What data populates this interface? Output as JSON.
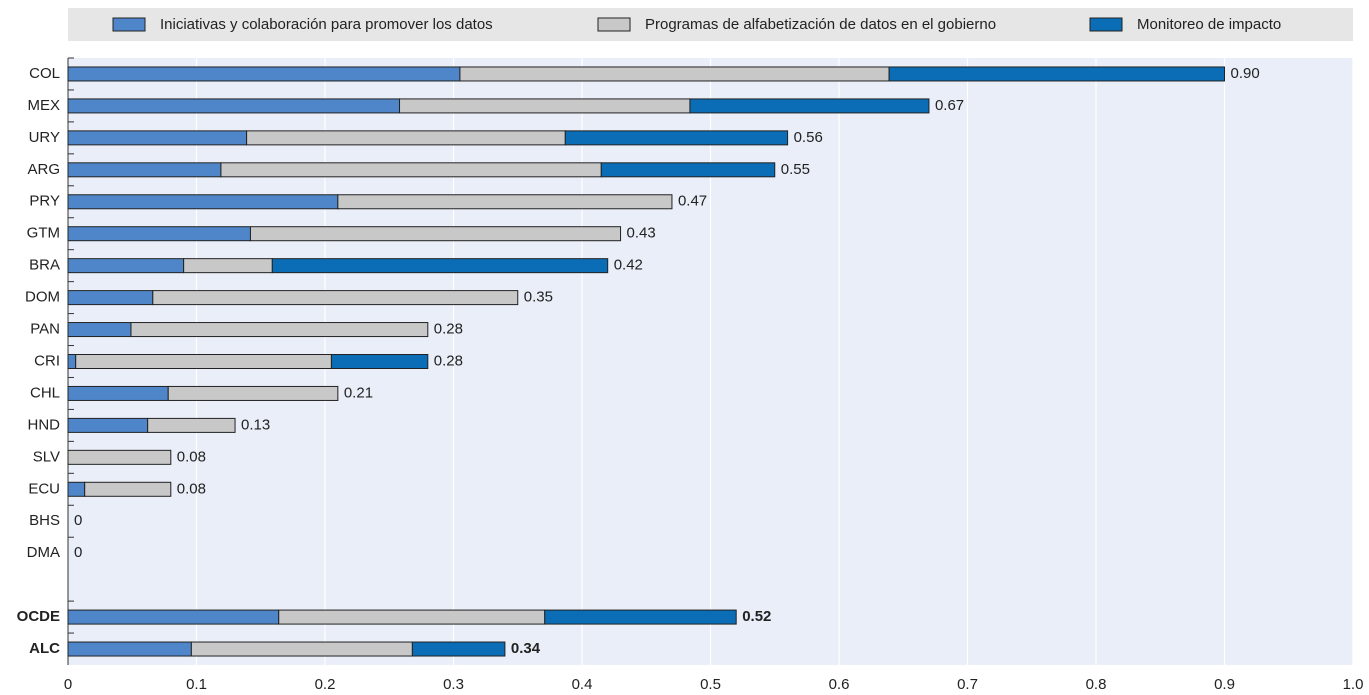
{
  "chart_data": {
    "type": "stacked-barh",
    "categories": [
      "COL",
      "MEX",
      "URY",
      "ARG",
      "PRY",
      "GTM",
      "BRA",
      "DOM",
      "PAN",
      "CRI",
      "CHL",
      "HND",
      "SLV",
      "ECU",
      "BHS",
      "DMA",
      null,
      "OCDE",
      "ALC"
    ],
    "series": [
      {
        "name": "Iniciativas y colaboración para promover los datos",
        "color": "#4f86c9",
        "values": [
          0.305,
          0.258,
          0.139,
          0.119,
          0.21,
          0.142,
          0.09,
          0.066,
          0.049,
          0.006,
          0.078,
          0.062,
          0,
          0.013,
          0,
          0,
          null,
          0.164,
          0.096
        ]
      },
      {
        "name": "Programas de alfabetización de datos en el gobierno",
        "color": "#c8c8c8",
        "values": [
          0.334,
          0.226,
          0.248,
          0.296,
          0.26,
          0.288,
          0.069,
          0.284,
          0.231,
          0.199,
          0.132,
          0.068,
          0.08,
          0.067,
          0,
          0,
          null,
          0.207,
          0.172
        ]
      },
      {
        "name": "Monitoreo de impacto",
        "color": "#0b6db5",
        "values": [
          0.261,
          0.186,
          0.173,
          0.135,
          0,
          0,
          0.261,
          0,
          0,
          0.075,
          0,
          0,
          0,
          0,
          0,
          0,
          null,
          0.149,
          0.072
        ]
      }
    ],
    "total_labels": [
      "0.90",
      "0.67",
      "0.56",
      "0.55",
      "0.47",
      "0.43",
      "0.42",
      "0.35",
      "0.28",
      "0.28",
      "0.21",
      "0.13",
      "0.08",
      "0.08",
      "0",
      "0",
      null,
      "0.52",
      "0.34"
    ],
    "xlim": [
      0,
      1
    ],
    "xticks": [
      0,
      0.1,
      0.2,
      0.3,
      0.4,
      0.5,
      0.6,
      0.7,
      0.8,
      0.9,
      {
        "value": 1,
        "label": "1.0"
      }
    ],
    "grid": true
  }
}
